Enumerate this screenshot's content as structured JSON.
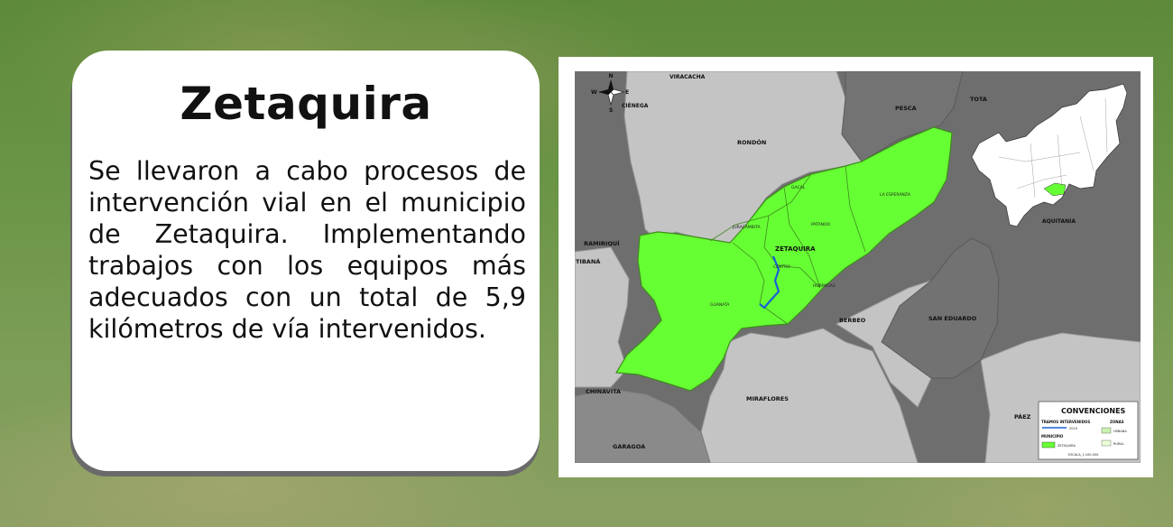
{
  "card": {
    "title": "Zetaquira",
    "text": "Se llevaron a cabo procesos de intervención vial en el municipio de Zetaquira. Implementando trabajos con los equipos más adecuados con un total de 5,9 kilómetros de vía intervenidos."
  },
  "map": {
    "compass": {
      "n": "N",
      "s": "S",
      "e": "E",
      "w": "W"
    },
    "neighbors": {
      "viracacha": "VIRACACHA",
      "cienega": "CIÉNEGA",
      "rondon": "RONDÓN",
      "pesca": "PESCA",
      "tota": "TOTA",
      "ramiriqui": "RAMIRIQUÍ",
      "tibana": "TIBANÁ",
      "berbeo": "BERBEO",
      "san_eduardo": "SAN EDUARDO",
      "chinavita": "CHINAVITA",
      "miraflores": "MIRAFLORES",
      "garagoa": "GARAGOA",
      "paez": "PÁEZ",
      "aquitania": "AQUITANIA"
    },
    "municipality_label": "ZETAQUIRA",
    "veredas": {
      "gacal": "GACAL",
      "la_esperanza": "LA ESPERANZA",
      "juracambita": "JURACAMBITA",
      "patanoo": "PATANOO",
      "centro": "CENTRO",
      "guanata": "GUANATA",
      "hormigas": "HORMIGAS"
    },
    "legend": {
      "title": "CONVENCIONES",
      "tramos_title": "TRAMOS INTERVENIDOS",
      "tramos_item": "2019",
      "zonas_title": "ZONAS",
      "zona_urbana": "URBANA",
      "zona_rural": "RURAL",
      "municipio_title": "MUNICIPIO",
      "municipio_item": "ZETAQUIRA",
      "escala": "ESCALA_1:100.000"
    },
    "colors": {
      "municipality": "#66ff33",
      "light_neighbor": "#c4c4c4",
      "dark_neighbor": "#777777",
      "road": "#1a5fd6"
    }
  }
}
